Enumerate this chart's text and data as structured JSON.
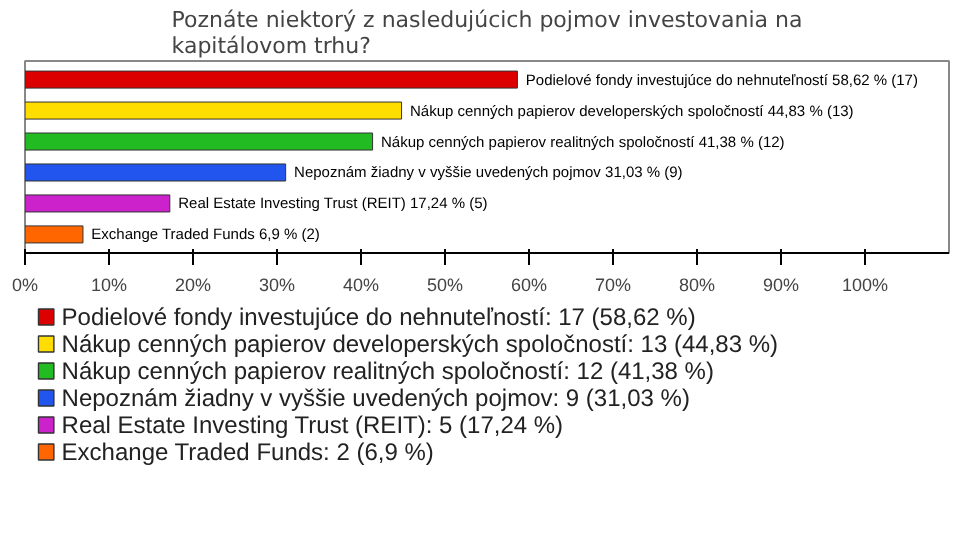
{
  "chart_data": {
    "type": "bar",
    "orientation": "horizontal",
    "stacked": true,
    "title": "Poznáte niektorý z nasledujúcich pojmov investovania na kapitálovom trhu?",
    "categories": [
      "Podielové fondy investujúce do nehnuteľností",
      "Nákup cenných papierov developerských spoločností",
      "Nákup cenných papierov realitných spoločností",
      "Nepoznám žiadny v vyššie uvedených pojmov",
      "Real Estate Investing Trust (REIT)",
      "Exchange Traded Funds"
    ],
    "series": [
      {
        "name": "Podielové fondy investujúce do nehnuteľností: 17 (58,62 %)",
        "color": "#dd0000",
        "values": [
          58.62,
          null,
          null,
          null,
          null,
          null
        ],
        "value_labels": [
          "58,62 % (17)",
          null,
          null,
          null,
          null,
          null
        ]
      },
      {
        "name": "Nákup cenných papierov developerských spoločností: 13 (44,83 %)",
        "color": "#ffdd00",
        "values": [
          null,
          44.83,
          null,
          null,
          null,
          null
        ],
        "value_labels": [
          null,
          "44,83 % (13)",
          null,
          null,
          null,
          null
        ]
      },
      {
        "name": "Nákup cenných papierov realitných spoločností: 12 (41,38 %)",
        "color": "#22bb22",
        "values": [
          null,
          null,
          41.38,
          null,
          null,
          null
        ],
        "value_labels": [
          null,
          null,
          "41,38 % (12)",
          null,
          null,
          null
        ]
      },
      {
        "name": "Nepoznám žiadny v vyššie uvedených pojmov: 9 (31,03 %)",
        "color": "#2255ee",
        "values": [
          null,
          null,
          null,
          31.03,
          null,
          null
        ],
        "value_labels": [
          null,
          null,
          null,
          "31,03 % (9)",
          null,
          null
        ]
      },
      {
        "name": "Real Estate Investing Trust (REIT): 5 (17,24 %)",
        "color": "#cc22cc",
        "values": [
          null,
          null,
          null,
          null,
          17.24,
          null
        ],
        "value_labels": [
          null,
          null,
          null,
          null,
          "17,24 % (5)",
          null
        ]
      },
      {
        "name": "Exchange Traded Funds: 2 (6,9 %)",
        "color": "#ff6600",
        "values": [
          null,
          null,
          null,
          null,
          null,
          6.9
        ],
        "value_labels": [
          null,
          null,
          null,
          null,
          null,
          "6,9 % (2)"
        ]
      }
    ],
    "xlim": [
      0,
      110
    ],
    "xticks": [
      {
        "value": 0,
        "label": "0%"
      },
      {
        "value": 10,
        "label": "10%"
      },
      {
        "value": 20,
        "label": "20%"
      },
      {
        "value": 30,
        "label": "30%"
      },
      {
        "value": 40,
        "label": "40%"
      },
      {
        "value": 50,
        "label": "50%"
      },
      {
        "value": 60,
        "label": "60%"
      },
      {
        "value": 70,
        "label": "70%"
      },
      {
        "value": 80,
        "label": "80%"
      },
      {
        "value": 90,
        "label": "90%"
      },
      {
        "value": 100,
        "label": "100%"
      }
    ],
    "grid": false,
    "legend": "bottom"
  }
}
